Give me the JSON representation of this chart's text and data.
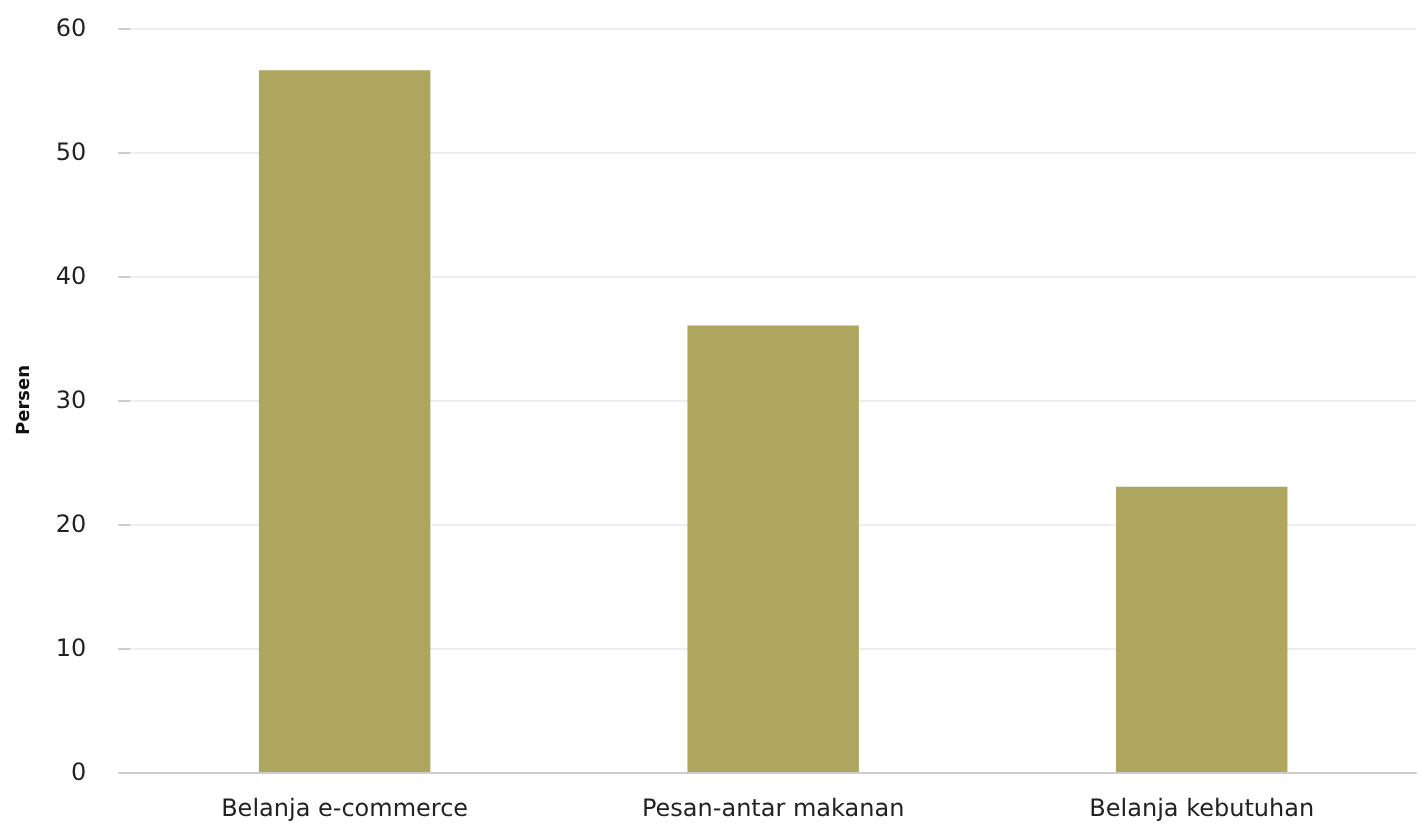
{
  "chart_data": {
    "type": "bar",
    "ylabel": "Persen",
    "categories": [
      "Belanja e-commerce",
      "Pesan-antar makanan",
      "Belanja kebutuhan"
    ],
    "values": [
      56.6,
      36,
      23
    ],
    "color": "#aaa056",
    "ylim": [
      0,
      60
    ],
    "yticks": [
      0,
      10,
      20,
      30,
      40,
      50,
      60
    ],
    "grid": "y"
  }
}
